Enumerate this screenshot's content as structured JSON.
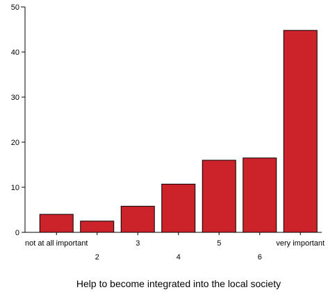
{
  "chart_data": {
    "type": "bar",
    "title": "",
    "xlabel": "Help to become integrated into the local society",
    "ylabel": "",
    "ylim": [
      0,
      50
    ],
    "yticks": [
      0,
      10,
      20,
      30,
      40,
      50
    ],
    "categories": [
      "not at all important",
      "2",
      "3",
      "4",
      "5",
      "6",
      "very important"
    ],
    "values": [
      4,
      2.5,
      5.8,
      10.7,
      16,
      16.5,
      44.8
    ],
    "bar_color": "#cc2229",
    "grid": false,
    "legend": "none"
  }
}
